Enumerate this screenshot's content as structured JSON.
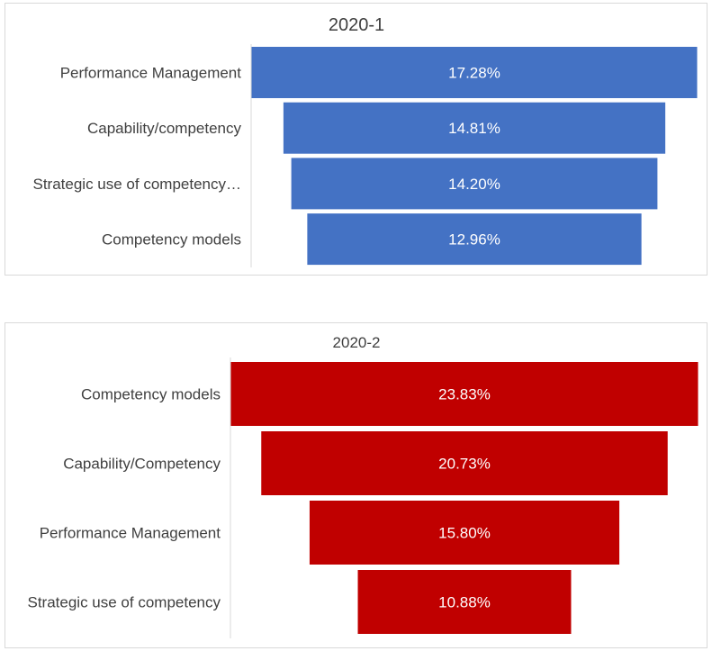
{
  "chart_data": [
    {
      "type": "bar",
      "variant": "funnel",
      "title": "2020-1",
      "categories": [
        "Performance Management",
        "Capability/competency",
        "Strategic use of competency…",
        "Competency models"
      ],
      "values": [
        17.28,
        14.81,
        14.2,
        12.96
      ],
      "value_labels": [
        "17.28%",
        "14.81%",
        "14.20%",
        "12.96%"
      ],
      "unit": "%",
      "color": "#4472c4",
      "grid": false,
      "legend": "none"
    },
    {
      "type": "bar",
      "variant": "funnel",
      "title": "2020-2",
      "categories": [
        "Competency models",
        "Capability/Competency",
        "Performance Management",
        "Strategic use of competency"
      ],
      "values": [
        23.83,
        20.73,
        15.8,
        10.88
      ],
      "value_labels": [
        "23.83%",
        "20.73%",
        "15.80%",
        "10.88%"
      ],
      "unit": "%",
      "color": "#c00000",
      "grid": false,
      "legend": "none"
    }
  ]
}
